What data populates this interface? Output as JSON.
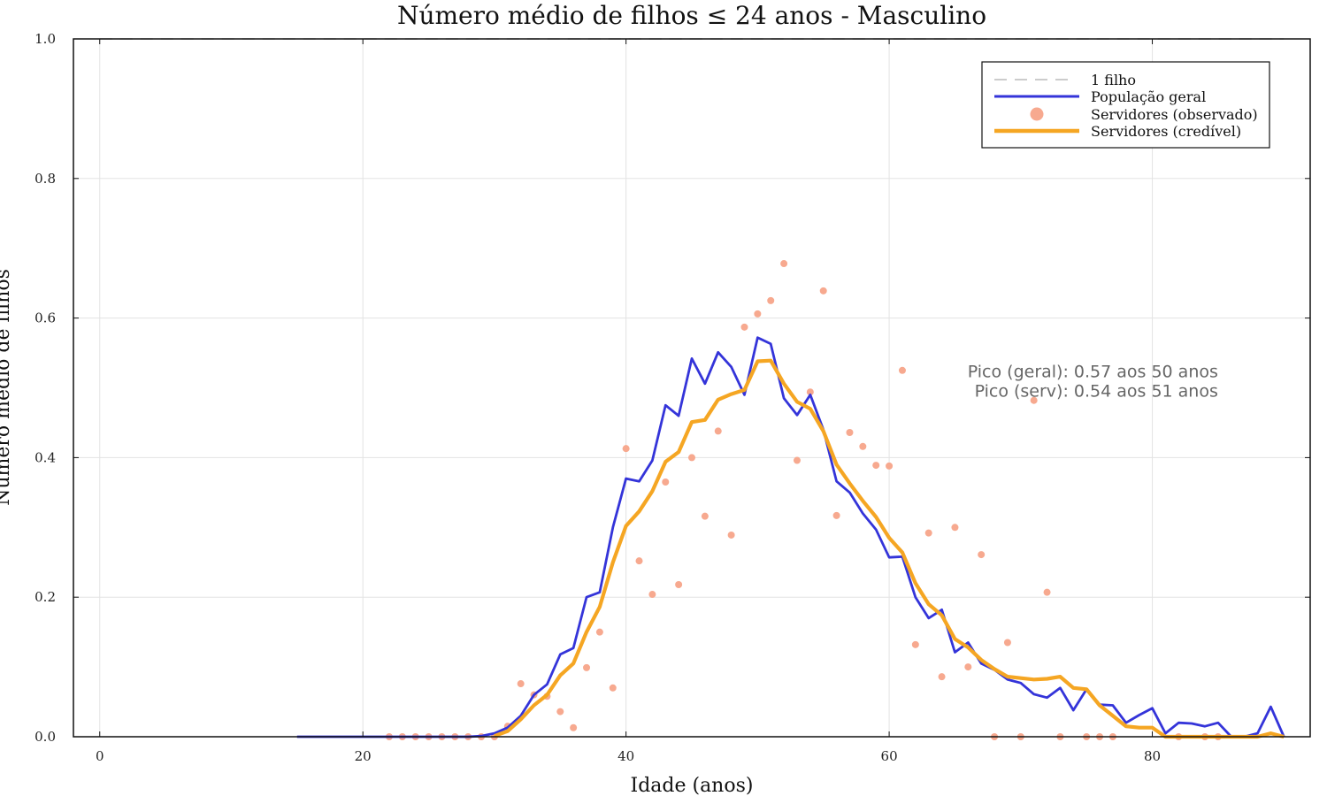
{
  "chart_data": {
    "type": "line",
    "title": "Número médio de filhos ≤ 24 anos - Masculino",
    "xlabel": "Idade (anos)",
    "ylabel": "Número médio de filhos",
    "xlim": [
      -2,
      92
    ],
    "ylim": [
      0,
      1
    ],
    "xticks": [
      0,
      20,
      40,
      60,
      80
    ],
    "yticks": [
      0.0,
      0.2,
      0.4,
      0.6,
      0.8,
      1.0
    ],
    "xtick_labels": [
      "0",
      "20",
      "40",
      "60",
      "80"
    ],
    "ytick_labels": [
      "0.0",
      "0.2",
      "0.4",
      "0.6",
      "0.8",
      "1.0"
    ],
    "grid": true,
    "legend_position": "top-right",
    "colors": {
      "reference": "#bbbbbb",
      "geral": "#3434d9",
      "observado": "#f7a98f",
      "credivel": "#f5a623"
    },
    "series": [
      {
        "name": "1 filho",
        "style": "dashed",
        "color": "#bbbbbb",
        "x": [
          0,
          90
        ],
        "y": [
          1.0,
          1.0
        ]
      },
      {
        "name": "População geral",
        "style": "line",
        "color": "#3434d9",
        "x": [
          15,
          16,
          17,
          18,
          19,
          20,
          21,
          22,
          23,
          24,
          25,
          26,
          27,
          28,
          29,
          30,
          31,
          32,
          33,
          34,
          35,
          36,
          37,
          38,
          39,
          40,
          41,
          42,
          43,
          44,
          45,
          46,
          47,
          48,
          49,
          50,
          51,
          52,
          53,
          54,
          55,
          56,
          57,
          58,
          59,
          60,
          61,
          62,
          63,
          64,
          65,
          66,
          67,
          68,
          69,
          70,
          71,
          72,
          73,
          74,
          75,
          76,
          77,
          78,
          79,
          80,
          81,
          82,
          83,
          84,
          85,
          86,
          87,
          88,
          89,
          90
        ],
        "y": [
          0,
          0,
          0,
          0,
          0,
          0,
          0,
          0,
          0,
          0,
          0,
          0,
          0,
          0,
          0.001,
          0.005,
          0.013,
          0.03,
          0.06,
          0.075,
          0.118,
          0.127,
          0.2,
          0.207,
          0.3,
          0.37,
          0.366,
          0.396,
          0.475,
          0.46,
          0.542,
          0.506,
          0.551,
          0.53,
          0.49,
          0.572,
          0.563,
          0.485,
          0.461,
          0.49,
          0.44,
          0.366,
          0.35,
          0.32,
          0.297,
          0.257,
          0.258,
          0.2,
          0.17,
          0.182,
          0.121,
          0.135,
          0.105,
          0.096,
          0.082,
          0.077,
          0.061,
          0.056,
          0.07,
          0.038,
          0.068,
          0.046,
          0.045,
          0.02,
          0.031,
          0.041,
          0.005,
          0.02,
          0.019,
          0.015,
          0.02,
          0,
          0,
          0.005,
          0.043,
          0
        ]
      },
      {
        "name": "Servidores (observado)",
        "style": "scatter",
        "color": "#f7a98f",
        "x": [
          22,
          23,
          24,
          25,
          26,
          27,
          28,
          29,
          30,
          31,
          32,
          33,
          34,
          35,
          36,
          37,
          38,
          39,
          40,
          41,
          42,
          43,
          44,
          45,
          46,
          47,
          48,
          49,
          50,
          51,
          52,
          53,
          54,
          55,
          56,
          57,
          58,
          59,
          60,
          61,
          62,
          63,
          64,
          65,
          66,
          67,
          68,
          69,
          70,
          71,
          72,
          73,
          75,
          76,
          77,
          82,
          84,
          85
        ],
        "y": [
          0,
          0,
          0,
          0,
          0,
          0,
          0,
          0,
          0,
          0.015,
          0.076,
          0.06,
          0.058,
          0.036,
          0.013,
          0.099,
          0.15,
          0.07,
          0.413,
          0.252,
          0.204,
          0.365,
          0.218,
          0.4,
          0.316,
          0.438,
          0.289,
          0.587,
          0.606,
          0.625,
          0.678,
          0.396,
          0.494,
          0.639,
          0.317,
          0.436,
          0.416,
          0.389,
          0.388,
          0.525,
          0.132,
          0.292,
          0.086,
          0.3,
          0.1,
          0.261,
          0,
          0.135,
          0,
          0.482,
          0.207,
          0,
          0,
          0,
          0,
          0,
          0,
          0
        ]
      },
      {
        "name": "Servidores (credível)",
        "style": "line",
        "color": "#f5a623",
        "x": [
          30,
          31,
          32,
          33,
          34,
          35,
          36,
          37,
          38,
          39,
          40,
          41,
          42,
          43,
          44,
          45,
          46,
          47,
          48,
          49,
          50,
          51,
          52,
          53,
          54,
          55,
          56,
          57,
          58,
          59,
          60,
          61,
          62,
          63,
          64,
          65,
          66,
          67,
          68,
          69,
          70,
          71,
          72,
          73,
          74,
          75,
          76,
          77,
          78,
          79,
          80,
          81,
          82,
          83,
          84,
          85,
          86,
          87,
          88,
          89,
          90
        ],
        "y": [
          0.001,
          0.008,
          0.025,
          0.045,
          0.06,
          0.088,
          0.105,
          0.15,
          0.186,
          0.25,
          0.302,
          0.323,
          0.352,
          0.394,
          0.408,
          0.451,
          0.454,
          0.483,
          0.491,
          0.497,
          0.538,
          0.539,
          0.506,
          0.48,
          0.47,
          0.438,
          0.39,
          0.363,
          0.338,
          0.315,
          0.285,
          0.264,
          0.22,
          0.19,
          0.174,
          0.14,
          0.128,
          0.11,
          0.097,
          0.086,
          0.084,
          0.082,
          0.083,
          0.086,
          0.07,
          0.068,
          0.045,
          0.03,
          0.015,
          0.013,
          0.013,
          0,
          0,
          0,
          0,
          0,
          0,
          0,
          0,
          0.005,
          0
        ]
      }
    ],
    "annotations": [
      {
        "text": "Pico (geral): 0.57 aos 50 anos",
        "x": 85,
        "y": 0.524
      },
      {
        "text": "Pico (serv): 0.54 aos 51 anos",
        "x": 85,
        "y": 0.496
      }
    ]
  }
}
